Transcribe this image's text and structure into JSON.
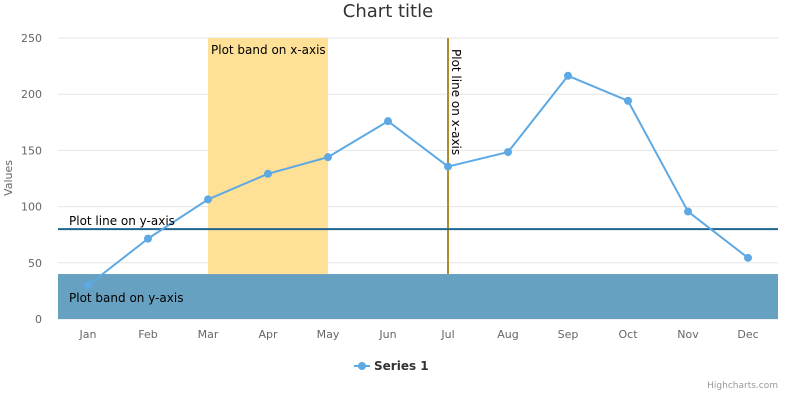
{
  "chart_data": {
    "type": "line",
    "title": "Chart title",
    "ylabel": "Values",
    "xlabel": "",
    "categories": [
      "Jan",
      "Feb",
      "Mar",
      "Apr",
      "May",
      "Jun",
      "Jul",
      "Aug",
      "Sep",
      "Oct",
      "Nov",
      "Dec"
    ],
    "ylim": [
      0,
      250
    ],
    "yticks": [
      "0",
      "50",
      "100",
      "150",
      "200",
      "250"
    ],
    "grid": true,
    "series": [
      {
        "name": "Series 1",
        "color": "#5ea9e3",
        "values": [
          29.9,
          71.5,
          106.4,
          129.2,
          144.0,
          176.0,
          135.6,
          148.5,
          216.4,
          194.1,
          95.6,
          54.4
        ]
      }
    ],
    "plot_band_x": {
      "label": "Plot band on x-axis",
      "from_category": "Mar",
      "to_category": "May",
      "color": "#ffe097"
    },
    "plot_line_x": {
      "label": "Plot line on x-axis",
      "at_category": "Jul",
      "color": "#b28a28"
    },
    "plot_band_y": {
      "label": "Plot band on y-axis",
      "from": -20,
      "to": 40,
      "color": "#66a1c1"
    },
    "plot_line_y": {
      "label": "Plot line on y-axis",
      "value": 80,
      "color": "#1f6590"
    },
    "legend": {
      "position": "bottom-center"
    },
    "credits": "Highcharts.com"
  }
}
